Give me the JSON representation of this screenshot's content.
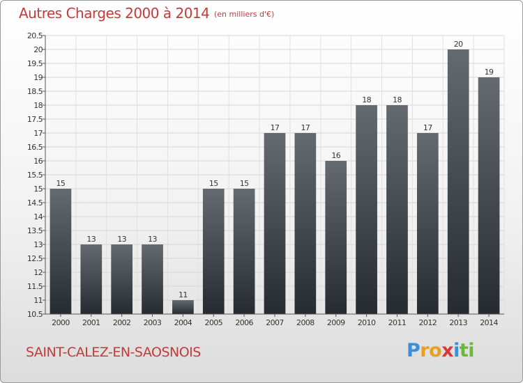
{
  "header": {
    "title": "Autres Charges 2000 à 2014",
    "subtitle": "(en milliers d'€)"
  },
  "footer": {
    "commune": "SAINT-CALEZ-EN-SAOSNOIS",
    "logo_letters": [
      "P",
      "r",
      "o",
      "x",
      "i",
      "t",
      "i"
    ],
    "logo_colors": [
      "#3a8fd8",
      "#e8a020",
      "#e8a020",
      "#d83a3a",
      "#3a8fd8",
      "#6bb83a",
      "#6bb83a"
    ]
  },
  "colors": {
    "bar_top": "#646a70",
    "bar_bottom": "#262b31",
    "accent": "#c23a3a"
  },
  "chart_data": {
    "type": "bar",
    "categories": [
      "2000",
      "2001",
      "2002",
      "2003",
      "2004",
      "2005",
      "2006",
      "2007",
      "2008",
      "2009",
      "2010",
      "2011",
      "2012",
      "2013",
      "2014"
    ],
    "values": [
      15,
      13,
      13,
      13,
      11,
      15,
      15,
      17,
      17,
      16,
      18,
      18,
      17,
      20,
      19
    ],
    "data_labels": [
      "15",
      "13",
      "13",
      "13",
      "11",
      "15",
      "15",
      "17",
      "17",
      "16",
      "18",
      "18",
      "17",
      "20",
      "19"
    ],
    "title": "Autres Charges 2000 à 2014",
    "xlabel": "",
    "ylabel": "",
    "ylim": [
      10.5,
      20.5
    ],
    "yticks": [
      10.5,
      11,
      11.5,
      12,
      12.5,
      13,
      13.5,
      14,
      14.5,
      15,
      15.5,
      16,
      16.5,
      17,
      17.5,
      18,
      18.5,
      19,
      19.5,
      20,
      20.5
    ],
    "ytick_labels": [
      "10.5",
      "11",
      "11.5",
      "12",
      "12.5",
      "13",
      "13.5",
      "14",
      "14.5",
      "15",
      "15.5",
      "16",
      "16.5",
      "17",
      "17.5",
      "18",
      "18.5",
      "19",
      "19.5",
      "20",
      "20.5"
    ],
    "grid": true
  }
}
